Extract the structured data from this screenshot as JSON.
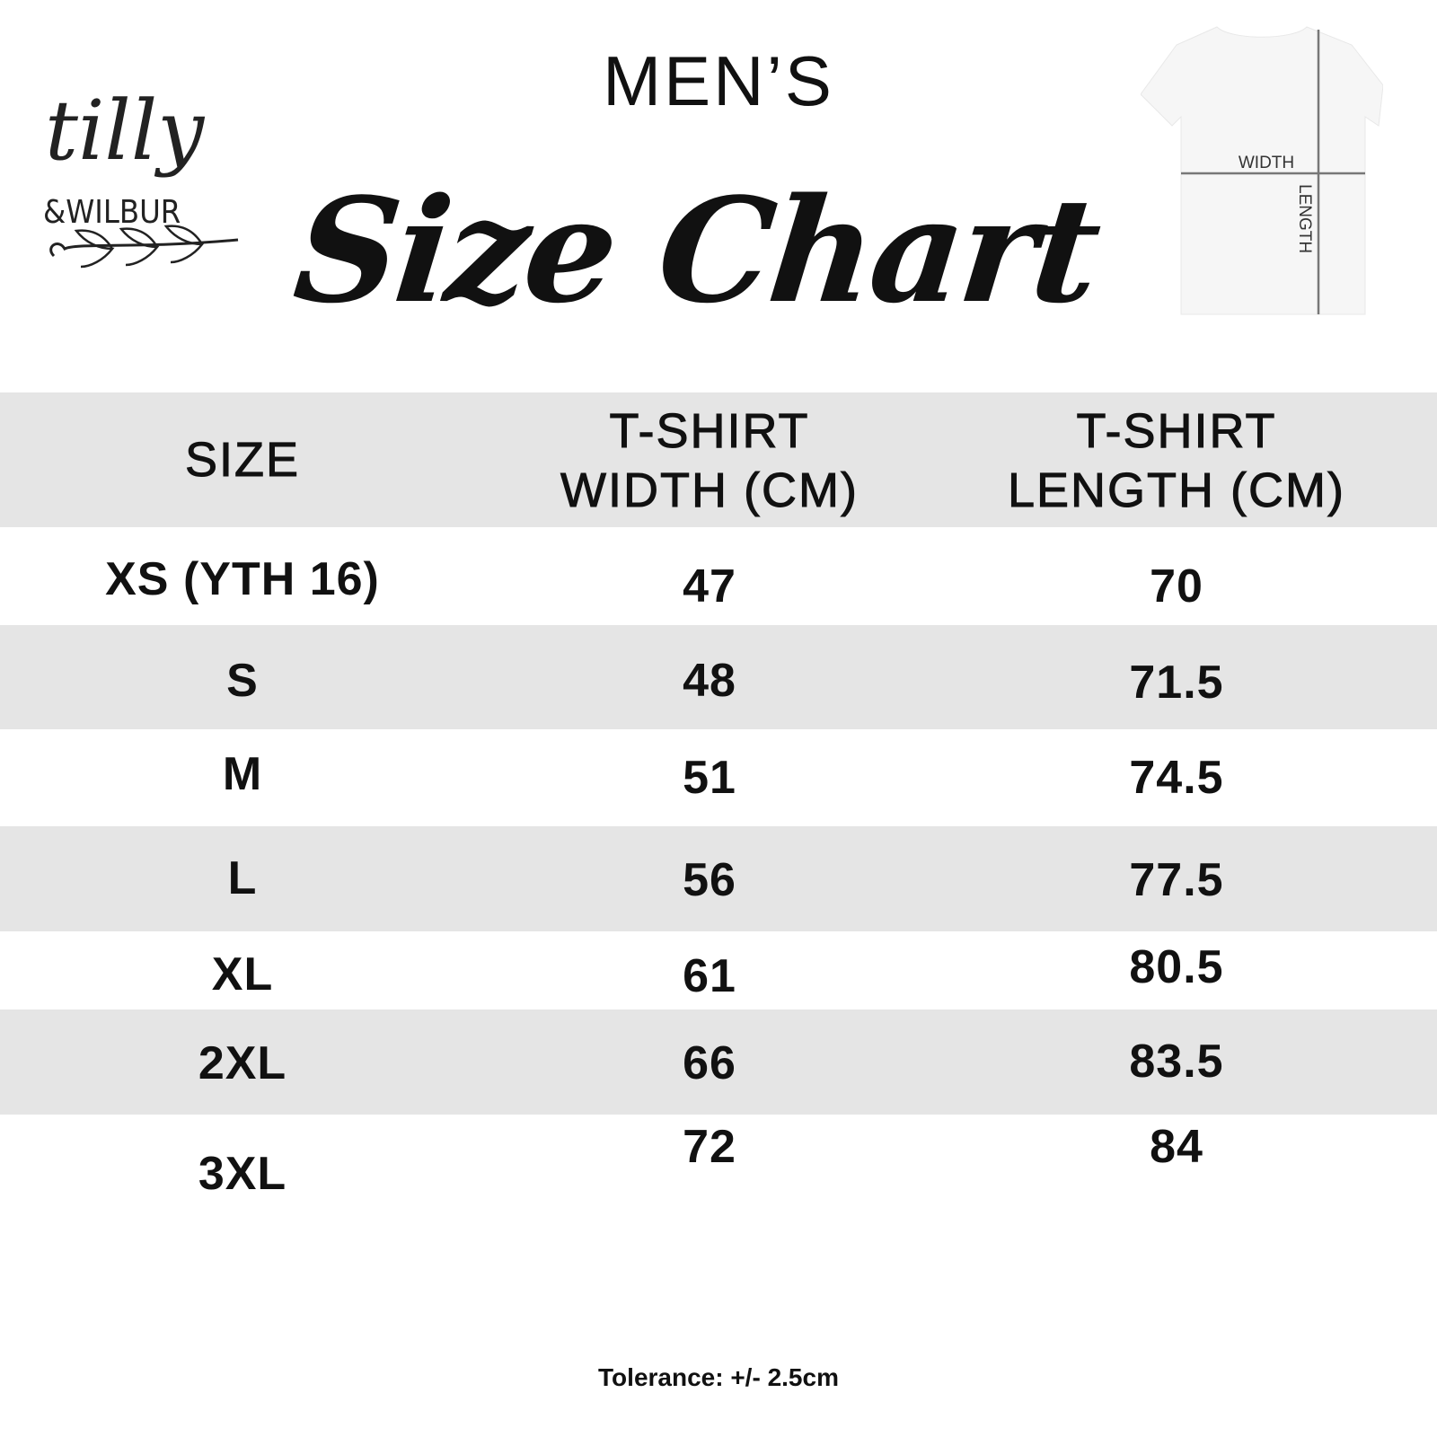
{
  "logo": {
    "brand": "tilly",
    "sub": "&WILBUR"
  },
  "heading": {
    "subtitle": "MEN’S",
    "title": "Size Chart"
  },
  "diagram": {
    "width_label": "WIDTH",
    "length_label": "LENGTH"
  },
  "table": {
    "headers": [
      "SIZE",
      "T-SHIRT WIDTH (CM)",
      "T-SHIRT LENGTH (CM)"
    ],
    "header_lines": [
      [
        "SIZE"
      ],
      [
        "T-SHIRT",
        "WIDTH (CM)"
      ],
      [
        "T-SHIRT",
        "LENGTH (CM)"
      ]
    ],
    "rows": [
      [
        "XS (YTH 16)",
        "47",
        "70"
      ],
      [
        "S",
        "48",
        "71.5"
      ],
      [
        "M",
        "51",
        "74.5"
      ],
      [
        "L",
        "56",
        "77.5"
      ],
      [
        "XL",
        "61",
        "80.5"
      ],
      [
        "2XL",
        "66",
        "83.5"
      ],
      [
        "3XL",
        "72",
        "84"
      ]
    ],
    "stripe_color": "#e5e5e5"
  },
  "footer": {
    "tolerance": "Tolerance: +/- 2.5cm"
  }
}
